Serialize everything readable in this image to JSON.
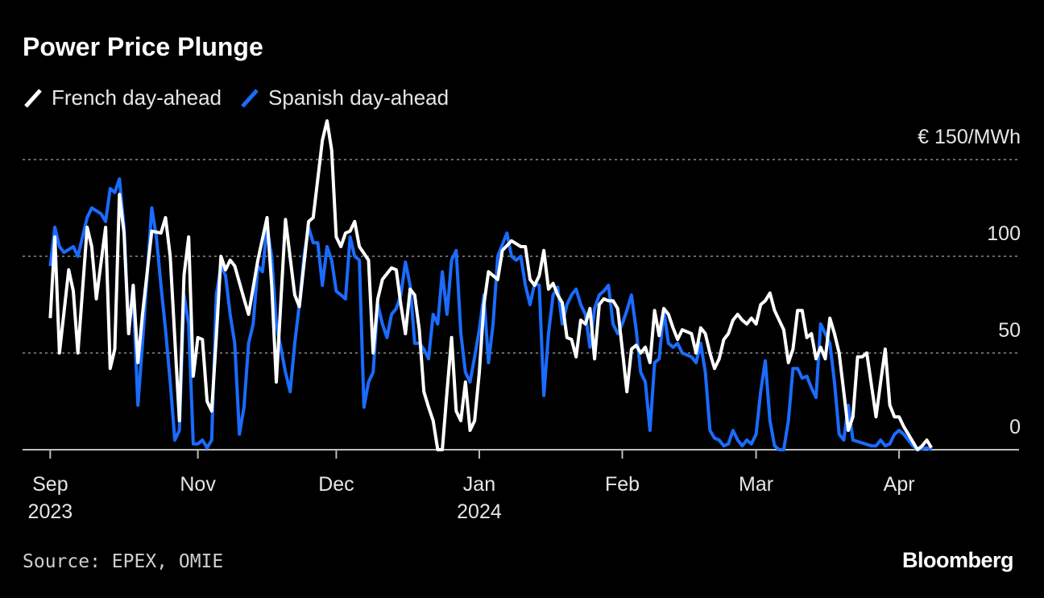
{
  "chart_data": {
    "type": "line",
    "title": "Power Price Plunge",
    "source": "Source: EPEX, OMIE",
    "logo": "Bloomberg",
    "grid": true,
    "legend": "top-left",
    "ylim": [
      0,
      170
    ],
    "yticks": [
      0,
      50,
      100,
      {
        "value": 150,
        "label": "€ 150/MWh"
      }
    ],
    "xlim": [
      -6,
      210
    ],
    "xticks": [
      {
        "value": 0,
        "label": "Sep\n2023"
      },
      {
        "value": 32,
        "label": "Nov"
      },
      {
        "value": 62,
        "label": "Dec"
      },
      {
        "value": 93,
        "label": "Jan\n2024"
      },
      {
        "value": 124,
        "label": "Feb"
      },
      {
        "value": 153,
        "label": "Mar"
      },
      {
        "value": 184,
        "label": "Apr"
      }
    ],
    "series": [
      {
        "name": "French day-ahead",
        "color": "#ffffff",
        "x": [
          0,
          1,
          2,
          4,
          5,
          6,
          8,
          9,
          10,
          12,
          13,
          14,
          15,
          16,
          17,
          18,
          19,
          20,
          22,
          24,
          25,
          26,
          28,
          29,
          30,
          31,
          32,
          33,
          34,
          35,
          36,
          37,
          38,
          39,
          40,
          42,
          43,
          45,
          47,
          48,
          49,
          51,
          53,
          54,
          56,
          57,
          58,
          59,
          60,
          61,
          62,
          63,
          64,
          65,
          66,
          67,
          69,
          70,
          71,
          72,
          74,
          75,
          76,
          77,
          78,
          79,
          80,
          81,
          82,
          83,
          84,
          85,
          86,
          87,
          88,
          89,
          90,
          91,
          92,
          93,
          94,
          95,
          97,
          98,
          100,
          102,
          103,
          104,
          105,
          106,
          107,
          108,
          109,
          110,
          111,
          112,
          113,
          114,
          115,
          116,
          117,
          118,
          119,
          120,
          121,
          122,
          123,
          124,
          125,
          126,
          127,
          128,
          129,
          130,
          131,
          132,
          133,
          134,
          135,
          136,
          137,
          139,
          140,
          141,
          142,
          143,
          144,
          145,
          146,
          147,
          148,
          149,
          150,
          151,
          152,
          153,
          154,
          155,
          156,
          157,
          159,
          160,
          161,
          162,
          163,
          164,
          165,
          166,
          167,
          168,
          169,
          170,
          171,
          172,
          173,
          174,
          175,
          176,
          177,
          179,
          180,
          181,
          182,
          183,
          184,
          185,
          186,
          187,
          188,
          189,
          190,
          191
        ],
        "values": [
          68,
          110,
          50,
          93,
          82,
          50,
          115,
          105,
          78,
          115,
          42,
          52,
          132,
          112,
          60,
          85,
          45,
          70,
          113,
          112,
          120,
          100,
          15,
          90,
          110,
          38,
          58,
          57,
          25,
          20,
          58,
          100,
          93,
          98,
          95,
          78,
          70,
          98,
          120,
          85,
          35,
          119,
          80,
          74,
          118,
          120,
          140,
          160,
          170,
          155,
          110,
          105,
          112,
          113,
          118,
          105,
          98,
          50,
          78,
          88,
          94,
          93,
          75,
          60,
          83,
          80,
          62,
          30,
          22,
          15,
          0,
          0,
          30,
          58,
          20,
          15,
          35,
          10,
          15,
          40,
          75,
          92,
          88,
          103,
          108,
          105,
          105,
          88,
          85,
          90,
          103,
          83,
          86,
          80,
          76,
          58,
          57,
          48,
          67,
          65,
          73,
          47,
          75,
          78,
          77,
          77,
          73,
          52,
          30,
          52,
          54,
          50,
          53,
          45,
          72,
          59,
          73,
          70,
          63,
          57,
          62,
          60,
          50,
          63,
          60,
          50,
          42,
          47,
          57,
          60,
          67,
          70,
          67,
          65,
          68,
          65,
          75,
          77,
          81,
          72,
          62,
          45,
          52,
          72,
          72,
          58,
          60,
          47,
          53,
          47,
          68,
          60,
          50,
          30,
          10,
          17,
          48,
          48,
          50,
          17,
          35,
          52,
          23,
          17,
          17,
          12,
          8,
          4,
          0,
          2,
          5,
          1
        ]
      },
      {
        "name": "Spanish day-ahead",
        "color": "#1a6cff",
        "x": [
          0,
          1,
          2,
          3,
          5,
          6,
          8,
          9,
          11,
          12,
          13,
          14,
          15,
          16,
          17,
          18,
          19,
          20,
          22,
          23,
          24,
          25,
          26,
          27,
          28,
          29,
          30,
          31,
          32,
          33,
          34,
          35,
          36,
          37,
          38,
          39,
          40,
          41,
          42,
          43,
          44,
          45,
          46,
          47,
          48,
          49,
          51,
          52,
          53,
          54,
          55,
          56,
          57,
          58,
          59,
          60,
          61,
          62,
          63,
          64,
          65,
          66,
          67,
          68,
          69,
          70,
          71,
          72,
          73,
          74,
          75,
          76,
          77,
          78,
          79,
          80,
          81,
          82,
          83,
          84,
          85,
          86,
          87,
          88,
          89,
          90,
          91,
          92,
          93,
          94,
          95,
          96,
          97,
          99,
          100,
          101,
          102,
          103,
          104,
          105,
          106,
          107,
          108,
          109,
          110,
          111,
          112,
          113,
          114,
          115,
          116,
          117,
          118,
          119,
          120,
          121,
          122,
          123,
          124,
          125,
          126,
          127,
          128,
          129,
          130,
          131,
          132,
          133,
          134,
          135,
          136,
          137,
          139,
          140,
          141,
          142,
          143,
          144,
          145,
          146,
          147,
          148,
          149,
          150,
          151,
          152,
          153,
          154,
          155,
          156,
          157,
          158,
          159,
          160,
          161,
          162,
          163,
          164,
          165,
          166,
          167,
          168,
          169,
          170,
          171,
          172,
          173,
          174,
          178,
          179,
          180,
          181,
          182,
          183,
          184,
          185,
          186,
          187,
          188,
          190,
          191
        ],
        "values": [
          95,
          115,
          105,
          102,
          105,
          100,
          120,
          125,
          122,
          118,
          135,
          133,
          140,
          115,
          62,
          80,
          23,
          55,
          125,
          110,
          85,
          62,
          35,
          5,
          10,
          80,
          65,
          3,
          3,
          5,
          1,
          5,
          80,
          95,
          90,
          70,
          55,
          8,
          22,
          55,
          65,
          95,
          92,
          115,
          100,
          65,
          40,
          30,
          55,
          75,
          100,
          115,
          107,
          107,
          85,
          105,
          98,
          82,
          80,
          78,
          110,
          100,
          98,
          22,
          35,
          40,
          75,
          65,
          58,
          70,
          73,
          80,
          97,
          85,
          55,
          55,
          52,
          47,
          70,
          65,
          92,
          70,
          98,
          103,
          60,
          40,
          35,
          48,
          62,
          80,
          45,
          65,
          100,
          112,
          100,
          98,
          100,
          85,
          75,
          86,
          85,
          28,
          60,
          80,
          84,
          65,
          75,
          80,
          83,
          75,
          70,
          53,
          73,
          80,
          82,
          85,
          65,
          60,
          65,
          72,
          80,
          62,
          40,
          35,
          10,
          45,
          47,
          72,
          55,
          53,
          55,
          50,
          48,
          45,
          55,
          40,
          10,
          6,
          5,
          2,
          3,
          10,
          5,
          2,
          5,
          3,
          8,
          30,
          46,
          15,
          2,
          0,
          0,
          15,
          42,
          42,
          37,
          38,
          32,
          27,
          65,
          60,
          55,
          35,
          8,
          5,
          23,
          5,
          2,
          2,
          5,
          2,
          3,
          8,
          10,
          8,
          5,
          2,
          0,
          1,
          0
        ]
      }
    ]
  }
}
